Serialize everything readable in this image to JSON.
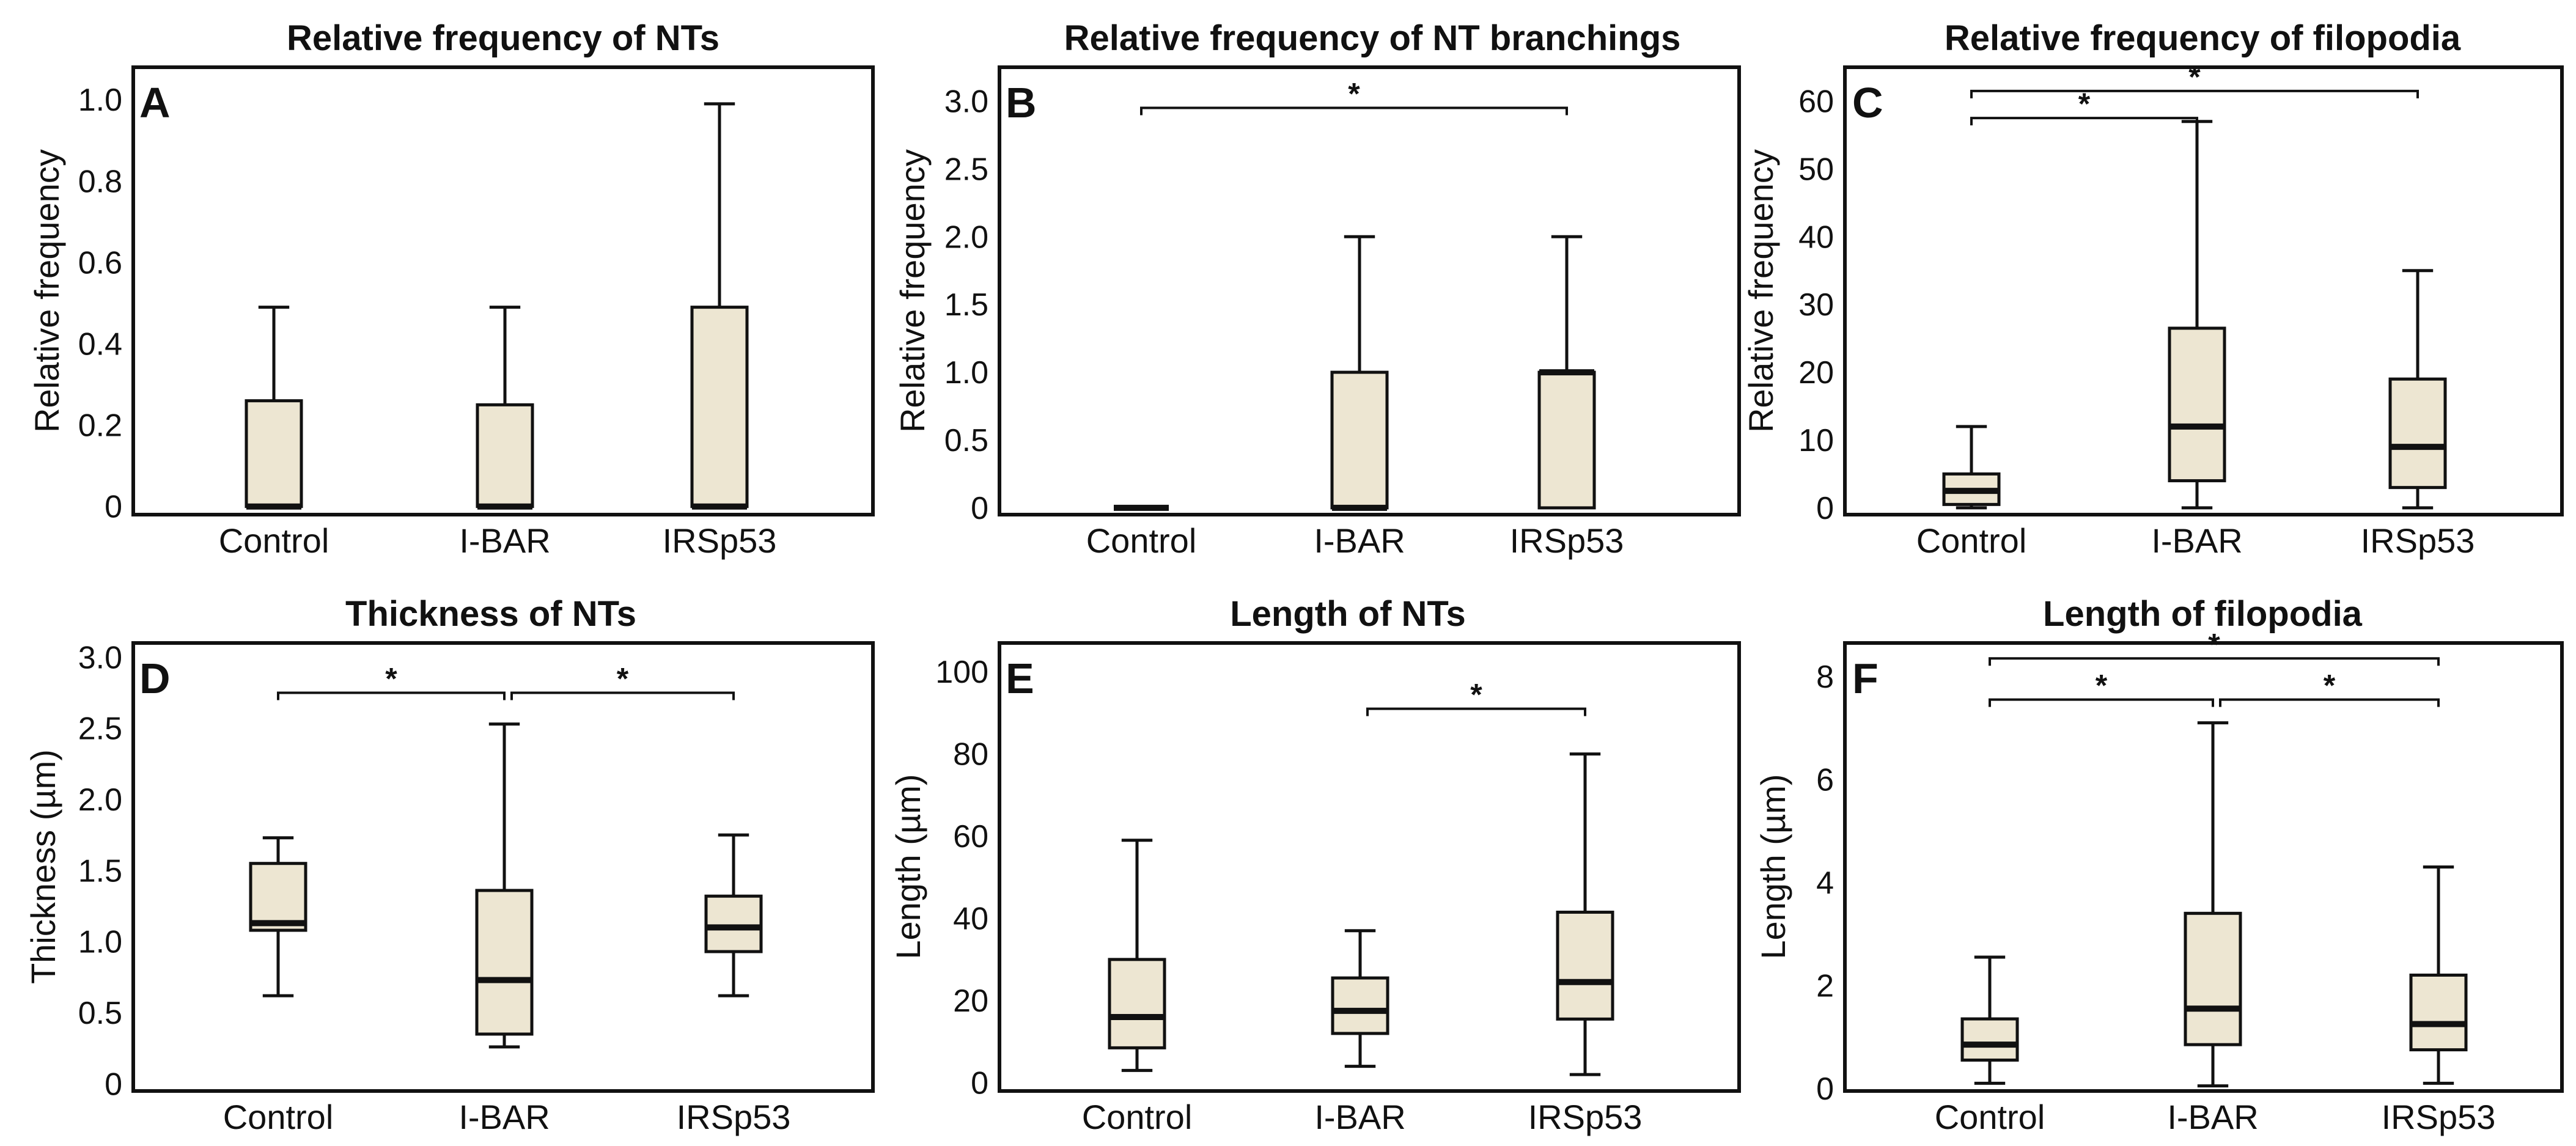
{
  "figure_colors": {
    "box_fill": "#ede6d2",
    "stroke": "#111111"
  },
  "panels": [
    {
      "letter": "A",
      "title": "Relative frequency of NTs",
      "ylabel": "Relative frequency",
      "ticks": [
        "0",
        "0.2",
        "0.4",
        "0.6",
        "0.8",
        "1.0"
      ]
    },
    {
      "letter": "B",
      "title": "Relative frequency of NT branchings",
      "ylabel": "Relative frequency",
      "ticks": [
        "0",
        "0.5",
        "1.0",
        "1.5",
        "2.0",
        "2.5",
        "3.0"
      ]
    },
    {
      "letter": "C",
      "title": "Relative frequency of filopodia",
      "ylabel": "Relative frequency",
      "ticks": [
        "0",
        "10",
        "20",
        "30",
        "40",
        "50",
        "60"
      ]
    },
    {
      "letter": "D",
      "title": "Thickness of NTs",
      "ylabel": "Thickness (µm)",
      "ticks": [
        "0",
        "0.5",
        "1.0",
        "1.5",
        "2.0",
        "2.5",
        "3.0"
      ]
    },
    {
      "letter": "E",
      "title": "Length of NTs",
      "ylabel": "Length (µm)",
      "ticks": [
        "0",
        "20",
        "40",
        "60",
        "80",
        "100"
      ]
    },
    {
      "letter": "F",
      "title": "Length of filopodia",
      "ylabel": "Length (µm)",
      "ticks": [
        "0",
        "2",
        "4",
        "6",
        "8"
      ]
    }
  ],
  "chart_data": [
    {
      "type": "boxplot",
      "panel": "A",
      "title": "Relative frequency of NTs",
      "xlabel": "",
      "ylabel": "Relative frequency",
      "categories": [
        "Control",
        "I-BAR",
        "IRSp53"
      ],
      "ylim": [
        -0.02,
        1.08
      ],
      "yticks": [
        0,
        0.2,
        0.4,
        0.6,
        0.8,
        1.0
      ],
      "boxes": [
        {
          "category": "Control",
          "min": 0,
          "q1": 0,
          "median": 0,
          "q3": 0.26,
          "max": 0.49
        },
        {
          "category": "I-BAR",
          "min": 0,
          "q1": 0,
          "median": 0,
          "q3": 0.25,
          "max": 0.49
        },
        {
          "category": "IRSp53",
          "min": 0,
          "q1": 0,
          "median": 0,
          "q3": 0.49,
          "max": 0.99
        }
      ],
      "significance": []
    },
    {
      "type": "boxplot",
      "panel": "B",
      "title": "Relative frequency of NT branchings",
      "xlabel": "",
      "ylabel": "Relative frequency",
      "categories": [
        "Control",
        "I-BAR",
        "IRSp53"
      ],
      "ylim": [
        -0.05,
        3.25
      ],
      "yticks": [
        0,
        0.5,
        1.0,
        1.5,
        2.0,
        2.5,
        3.0
      ],
      "boxes": [
        {
          "category": "Control",
          "min": 0,
          "q1": 0,
          "median": 0,
          "q3": 0,
          "max": 0
        },
        {
          "category": "I-BAR",
          "min": 0,
          "q1": 0,
          "median": 0,
          "q3": 1.0,
          "max": 2.0
        },
        {
          "category": "IRSp53",
          "min": 0,
          "q1": 0,
          "median": 1.0,
          "q3": 1.0,
          "max": 2.0
        }
      ],
      "significance": [
        {
          "from": "Control",
          "to": "IRSp53",
          "label": "*",
          "level": 2.95
        }
      ]
    },
    {
      "type": "boxplot",
      "panel": "C",
      "title": "Relative frequency of filopodia",
      "xlabel": "",
      "ylabel": "Relative frequency",
      "categories": [
        "Control",
        "I-BAR",
        "IRSp53"
      ],
      "ylim": [
        -1,
        65
      ],
      "yticks": [
        0,
        10,
        20,
        30,
        40,
        50,
        60
      ],
      "boxes": [
        {
          "category": "Control",
          "min": 0,
          "q1": 0.5,
          "median": 2.5,
          "q3": 5,
          "max": 12
        },
        {
          "category": "I-BAR",
          "min": 0,
          "q1": 4,
          "median": 12,
          "q3": 26.5,
          "max": 57
        },
        {
          "category": "IRSp53",
          "min": 0,
          "q1": 3,
          "median": 9,
          "q3": 19,
          "max": 35
        }
      ],
      "significance": [
        {
          "from": "Control",
          "to": "IRSp53",
          "label": "*",
          "level": 61.5
        },
        {
          "from": "Control",
          "to": "I-BAR",
          "label": "*",
          "level": 57.5
        }
      ]
    },
    {
      "type": "boxplot",
      "panel": "D",
      "title": "Thickness of NTs",
      "xlabel": "",
      "ylabel": "Thickness (µm)",
      "categories": [
        "Control",
        "I-BAR",
        "IRSp53"
      ],
      "ylim": [
        -0.05,
        3.1
      ],
      "yticks": [
        0,
        0.5,
        1.0,
        1.5,
        2.0,
        2.5,
        3.0
      ],
      "boxes": [
        {
          "category": "Control",
          "min": 0.62,
          "q1": 1.08,
          "median": 1.13,
          "q3": 1.55,
          "max": 1.73
        },
        {
          "category": "I-BAR",
          "min": 0.26,
          "q1": 0.35,
          "median": 0.73,
          "q3": 1.36,
          "max": 2.53
        },
        {
          "category": "IRSp53",
          "min": 0.62,
          "q1": 0.93,
          "median": 1.1,
          "q3": 1.32,
          "max": 1.75
        }
      ],
      "significance": [
        {
          "from": "Control",
          "to": "I-BAR",
          "label": "*",
          "level": 2.75
        },
        {
          "from": "I-BAR",
          "to": "IRSp53",
          "label": "*",
          "level": 2.75
        }
      ]
    },
    {
      "type": "boxplot",
      "panel": "E",
      "title": "Length of NTs",
      "xlabel": "",
      "ylabel": "Length (µm)",
      "categories": [
        "Control",
        "I-BAR",
        "IRSp53"
      ],
      "ylim": [
        -2,
        107
      ],
      "yticks": [
        0,
        20,
        40,
        60,
        80,
        100
      ],
      "boxes": [
        {
          "category": "Control",
          "min": 3,
          "q1": 8.5,
          "median": 16,
          "q3": 30,
          "max": 59
        },
        {
          "category": "I-BAR",
          "min": 4,
          "q1": 12,
          "median": 17.5,
          "q3": 25.5,
          "max": 37
        },
        {
          "category": "IRSp53",
          "min": 2,
          "q1": 15.5,
          "median": 24.5,
          "q3": 41.5,
          "max": 80
        }
      ],
      "significance": [
        {
          "from": "I-BAR",
          "to": "IRSp53",
          "label": "*",
          "level": 91
        }
      ]
    },
    {
      "type": "boxplot",
      "panel": "F",
      "title": "Length of filopodia",
      "xlabel": "",
      "ylabel": "Length (µm)",
      "categories": [
        "Control",
        "I-BAR",
        "IRSp53"
      ],
      "ylim": [
        -0.05,
        8.65
      ],
      "yticks": [
        0,
        2,
        4,
        6,
        8
      ],
      "boxes": [
        {
          "category": "Control",
          "min": 0.1,
          "q1": 0.55,
          "median": 0.85,
          "q3": 1.35,
          "max": 2.55
        },
        {
          "category": "I-BAR",
          "min": 0.05,
          "q1": 0.85,
          "median": 1.55,
          "q3": 3.4,
          "max": 7.1
        },
        {
          "category": "IRSp53",
          "min": 0.1,
          "q1": 0.75,
          "median": 1.25,
          "q3": 2.2,
          "max": 4.3
        }
      ],
      "significance": [
        {
          "from": "Control",
          "to": "IRSp53",
          "label": "*",
          "level": 8.35
        },
        {
          "from": "Control",
          "to": "I-BAR",
          "label": "*",
          "level": 7.55
        },
        {
          "from": "I-BAR",
          "to": "IRSp53",
          "label": "*",
          "level": 7.55
        }
      ]
    }
  ]
}
